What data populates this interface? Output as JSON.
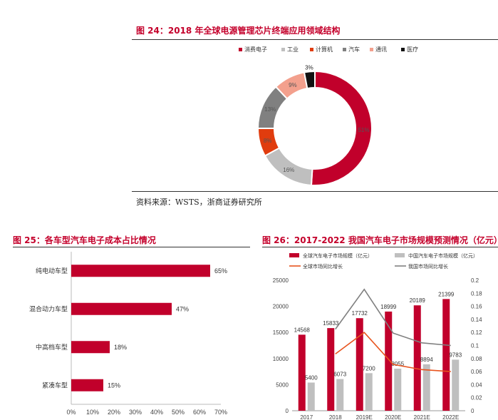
{
  "figure24": {
    "title": "图 24：2018 年全球电源管理芯片终端应用领域结构",
    "source": "资料来源：WSTS，浙商证券研究所"
  },
  "figure25": {
    "title": "图 25：各车型汽车电子成本占比情况"
  },
  "figure26": {
    "title": "图 26：2017-2022 我国汽车电子市场规模预测情况（亿元）"
  },
  "chart_data": [
    {
      "type": "pie",
      "title": "",
      "categories": [
        "消费电子",
        "工业",
        "计算机",
        "汽车",
        "通讯",
        "医疗"
      ],
      "values": [
        51,
        16,
        8,
        13,
        9,
        3
      ],
      "data_labels": [
        "51%",
        "16%",
        "8%",
        "13%",
        "9%",
        "3%"
      ],
      "colors": [
        "#c1002b",
        "#bfbfbf",
        "#e03c0e",
        "#808080",
        "#f3a08d",
        "#111111"
      ],
      "legend": "top",
      "donut": true
    },
    {
      "type": "bar",
      "orientation": "horizontal",
      "title": "",
      "categories": [
        "纯电动车型",
        "混合动力车型",
        "中高档车型",
        "紧凑车型"
      ],
      "values": [
        65,
        47,
        18,
        15
      ],
      "data_labels": [
        "65%",
        "47%",
        "18%",
        "15%"
      ],
      "xlim": [
        0,
        70
      ],
      "x_ticks": [
        "0%",
        "10%",
        "20%",
        "30%",
        "40%",
        "50%",
        "60%",
        "70%"
      ],
      "color": "#c1002b",
      "grid": false
    },
    {
      "type": "bar",
      "title": "",
      "categories": [
        "2017",
        "2018",
        "2019E",
        "2020E",
        "2021E",
        "2022E"
      ],
      "series": [
        {
          "name": "全球汽车电子市场规模（亿元）",
          "kind": "bar",
          "axis": "left",
          "color": "#c1002b",
          "values": [
            14568,
            15833,
            17732,
            18999,
            20189,
            21399
          ]
        },
        {
          "name": "中国汽车电子市场规模（亿元）",
          "kind": "bar",
          "axis": "left",
          "color": "#bfbfbf",
          "values": [
            5400,
            6073,
            7200,
            8055,
            8894,
            9783
          ]
        },
        {
          "name": "全球市场同比增长",
          "kind": "line",
          "axis": "right",
          "color": "#e8541e",
          "values": [
            null,
            0.087,
            0.12,
            0.071,
            0.063,
            0.06
          ]
        },
        {
          "name": "我国市场同比增长",
          "kind": "line",
          "axis": "right",
          "color": "#808080",
          "values": [
            null,
            0.125,
            0.186,
            0.119,
            0.104,
            0.1
          ]
        }
      ],
      "ylim": [
        0,
        25000
      ],
      "y_ticks": [
        "0",
        "5000",
        "10000",
        "15000",
        "20000",
        "25000"
      ],
      "y2lim": [
        0,
        0.2
      ],
      "y2_ticks": [
        "0",
        "0.02",
        "0.04",
        "0.06",
        "0.08",
        "0.1",
        "0.12",
        "0.14",
        "0.16",
        "0.18",
        "0.2"
      ],
      "data_labels": {
        "global": [
          "14568",
          "15833",
          "17732",
          "18999",
          "20189",
          "21399"
        ],
        "china": [
          "5400",
          "6073",
          "7200",
          "8055",
          "8894",
          "9783"
        ]
      },
      "legend": "top",
      "grid": false
    }
  ]
}
